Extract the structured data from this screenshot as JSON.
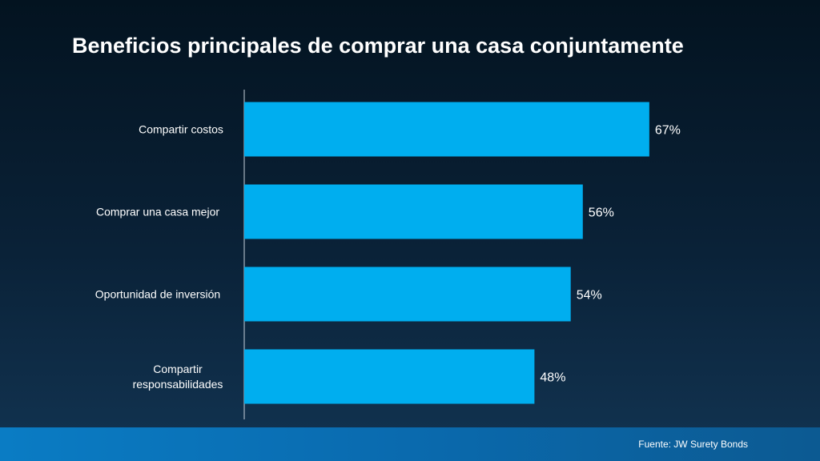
{
  "slide": {
    "title": "Beneficios principales de comprar una casa conjuntamente",
    "source": "Fuente: JW Surety Bonds"
  },
  "colors": {
    "bar": "#00aeef",
    "axis": "#c8d2dc",
    "text": "#ffffff"
  },
  "chart_data": {
    "type": "bar",
    "orientation": "horizontal",
    "title": "Beneficios principales de comprar una casa conjuntamente",
    "categories": [
      [
        "Compartir costos"
      ],
      [
        "Comprar una casa mejor"
      ],
      [
        "Oportunidad de inversión"
      ],
      [
        "Compartir",
        "responsabilidades"
      ]
    ],
    "values": [
      67,
      56,
      54,
      48
    ],
    "value_labels": [
      "67%",
      "56%",
      "54%",
      "48%"
    ],
    "unit": "%",
    "xlim": [
      0,
      100
    ],
    "grid": false,
    "legend": "none"
  }
}
